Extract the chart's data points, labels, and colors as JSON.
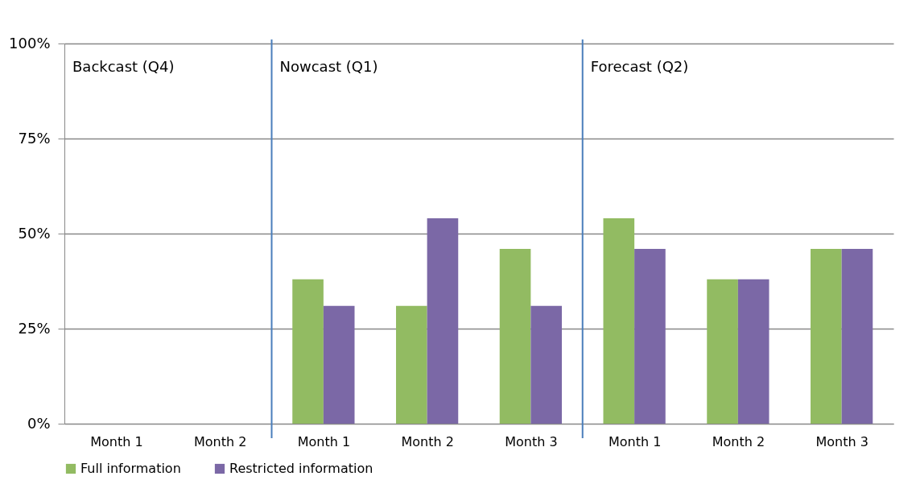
{
  "chart_data": {
    "type": "bar",
    "categories": [
      "Month 1",
      "Month 2",
      "Month 1",
      "Month 2",
      "Month 3",
      "Month 1",
      "Month 2",
      "Month 3"
    ],
    "series": [
      {
        "name": "Full information",
        "color": "#92bb62",
        "values": [
          null,
          null,
          0.38,
          0.31,
          0.46,
          0.54,
          0.38,
          0.46
        ]
      },
      {
        "name": "Restricted information",
        "color": "#7b68a6",
        "values": [
          null,
          null,
          0.31,
          0.54,
          0.31,
          0.46,
          0.38,
          0.46
        ]
      }
    ],
    "ylim": [
      0,
      1
    ],
    "yticks": [
      {
        "value": 0,
        "label": "0%"
      },
      {
        "value": 0.25,
        "label": "25%"
      },
      {
        "value": 0.5,
        "label": "50%"
      },
      {
        "value": 0.75,
        "label": "75%"
      },
      {
        "value": 1,
        "label": "100%"
      }
    ],
    "annotations": [
      "Backcast (Q4)",
      "Nowcast (Q1)",
      "Forecast (Q2)"
    ],
    "grid": "y",
    "legend": "bottom"
  }
}
